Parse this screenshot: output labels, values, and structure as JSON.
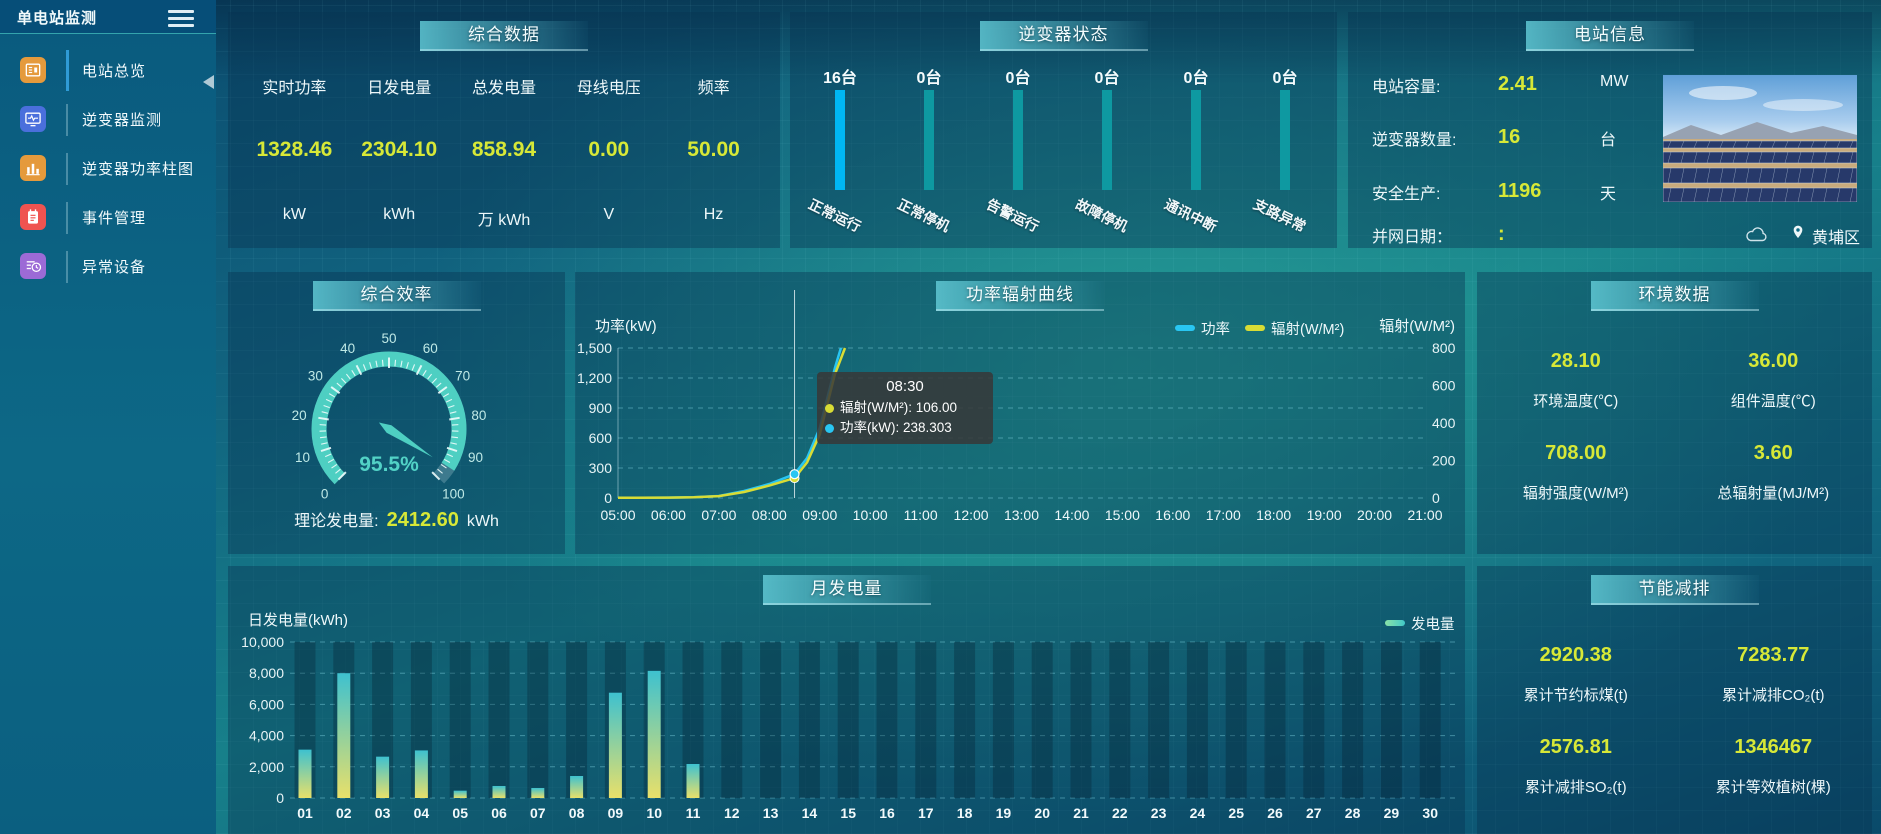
{
  "app_title": "单电站监测",
  "sidebar": {
    "title": "单电站监测",
    "items": [
      {
        "label": "电站总览",
        "icon": "overview-doc-icon",
        "icon_color": "#e59a3c",
        "active": true
      },
      {
        "label": "逆变器监测",
        "icon": "inverter-monitor-icon",
        "icon_color": "#4a6fdc",
        "active": false
      },
      {
        "label": "逆变器功率柱图",
        "icon": "power-barchart-icon",
        "icon_color": "#e59a3c",
        "active": false
      },
      {
        "label": "事件管理",
        "icon": "event-notebook-icon",
        "icon_color": "#ef5350",
        "active": false
      },
      {
        "label": "异常设备",
        "icon": "abnormal-device-icon",
        "icon_color": "#9c6ad6",
        "active": false
      }
    ]
  },
  "summary": {
    "title": "综合数据",
    "metrics": [
      {
        "label": "实时功率",
        "value": "1328.46",
        "unit": "kW"
      },
      {
        "label": "日发电量",
        "value": "2304.10",
        "unit": "kWh"
      },
      {
        "label": "总发电量",
        "value": "858.94",
        "unit": "万 kWh"
      },
      {
        "label": "母线电压",
        "value": "0.00",
        "unit": "V"
      },
      {
        "label": "频率",
        "value": "50.00",
        "unit": "Hz"
      }
    ]
  },
  "inverter_status": {
    "title": "逆变器状态",
    "unit_suffix": "台",
    "items": [
      {
        "label": "正常运行",
        "count": 16,
        "highlight": true
      },
      {
        "label": "正常停机",
        "count": 0,
        "highlight": false
      },
      {
        "label": "告警运行",
        "count": 0,
        "highlight": false
      },
      {
        "label": "故障停机",
        "count": 0,
        "highlight": false
      },
      {
        "label": "通讯中断",
        "count": 0,
        "highlight": false
      },
      {
        "label": "支路异常",
        "count": 0,
        "highlight": false
      }
    ],
    "colors": {
      "highlight": "#00b7f4",
      "normal": "#0e99a1"
    }
  },
  "station_info": {
    "title": "电站信息",
    "rows": [
      {
        "label": "电站容量:",
        "value": "2.41",
        "unit": "MW"
      },
      {
        "label": "逆变器数量:",
        "value": "16",
        "unit": "台"
      },
      {
        "label": "安全生产:",
        "value": "1196",
        "unit": "天"
      },
      {
        "label": "并网日期：",
        "value": ":",
        "unit": ""
      }
    ],
    "location": "黄埔区"
  },
  "efficiency": {
    "title": "综合效率",
    "gauge_display": "95.5%",
    "theory_label": "理论发电量:",
    "theory_value": "2412.60",
    "theory_unit": "kWh"
  },
  "power_radiation": {
    "title": "功率辐射曲线",
    "legend": [
      {
        "label": "功率",
        "color": "#29c6f2"
      },
      {
        "label": "辐射(W/M²)",
        "color": "#d8dc35"
      }
    ],
    "tooltip": {
      "time": "08:30",
      "rows": [
        {
          "color": "#d8dc35",
          "text": "辐射(W/M²): 106.00"
        },
        {
          "color": "#29c6f2",
          "text": "功率(kW): 238.303"
        }
      ]
    }
  },
  "environment": {
    "title": "环境数据",
    "items": [
      {
        "value": "28.10",
        "label": "环境温度(℃)"
      },
      {
        "value": "36.00",
        "label": "组件温度(℃)"
      },
      {
        "value": "708.00",
        "label": "辐射强度(W/M²)"
      },
      {
        "value": "3.60",
        "label": "总辐射量(MJ/M²)"
      }
    ]
  },
  "monthly": {
    "title": "月发电量",
    "ylabel": "日发电量(kWh)",
    "legend": "发电量"
  },
  "saving": {
    "title": "节能减排",
    "items": [
      {
        "value": "2920.38",
        "label": "累计节约标煤(t)"
      },
      {
        "value": "7283.77",
        "label": "累计减排CO₂(t)"
      },
      {
        "value": "2576.81",
        "label": "累计减排SO₂(t)"
      },
      {
        "value": "1346467",
        "label": "累计等效植树(棵)"
      }
    ]
  },
  "chart_data": [
    {
      "id": "inverter_status",
      "type": "bar",
      "title": "逆变器状态",
      "categories": [
        "正常运行",
        "正常停机",
        "告警运行",
        "故障停机",
        "通讯中断",
        "支路异常"
      ],
      "values": [
        16,
        0,
        0,
        0,
        0,
        0
      ],
      "unit": "台"
    },
    {
      "id": "power_radiation",
      "type": "line",
      "title": "功率辐射曲线",
      "x_ticks": [
        "05:00",
        "06:00",
        "07:00",
        "08:00",
        "09:00",
        "10:00",
        "11:00",
        "12:00",
        "13:00",
        "14:00",
        "15:00",
        "16:00",
        "17:00",
        "18:00",
        "19:00",
        "20:00",
        "21:00"
      ],
      "left_axis": {
        "name": "功率(kW)",
        "min": 0,
        "max": 1500,
        "ticks": [
          "1,500",
          "1,200",
          "900",
          "600",
          "300",
          "0"
        ]
      },
      "right_axis": {
        "name": "辐射(W/M²)",
        "min": 0,
        "max": 800,
        "ticks": [
          "800",
          "600",
          "400",
          "200",
          "0"
        ]
      },
      "pointer_hour": 8.5,
      "series": [
        {
          "name": "功率",
          "axis": "left",
          "color": "#29c6f2",
          "points": [
            [
              5,
              2
            ],
            [
              5.5,
              2
            ],
            [
              6,
              4
            ],
            [
              6.5,
              8
            ],
            [
              7,
              20
            ],
            [
              7.5,
              70
            ],
            [
              8,
              140
            ],
            [
              8.5,
              238.3
            ],
            [
              8.75,
              400
            ],
            [
              9,
              700
            ],
            [
              9.15,
              1000
            ],
            [
              9.3,
              1300
            ],
            [
              9.42,
              1500
            ]
          ]
        },
        {
          "name": "辐射(W/M²)",
          "axis": "right",
          "color": "#d8dc35",
          "points": [
            [
              5,
              1
            ],
            [
              6,
              2
            ],
            [
              6.5,
              4
            ],
            [
              7,
              10
            ],
            [
              7.5,
              32
            ],
            [
              8,
              66
            ],
            [
              8.5,
              106
            ],
            [
              8.75,
              190
            ],
            [
              9,
              340
            ],
            [
              9.15,
              500
            ],
            [
              9.3,
              660
            ],
            [
              9.5,
              800
            ]
          ]
        }
      ],
      "legend_position": "top-right-of-plot",
      "grid": true
    },
    {
      "id": "monthly_energy",
      "type": "bar",
      "title": "月发电量",
      "ylabel": "日发电量(kWh)",
      "legend": "发电量",
      "ymax": 10000,
      "yticks": [
        "10,000",
        "8,000",
        "6,000",
        "4,000",
        "2,000",
        "0"
      ],
      "categories": [
        "01",
        "02",
        "03",
        "04",
        "05",
        "06",
        "07",
        "08",
        "09",
        "10",
        "11",
        "12",
        "13",
        "14",
        "15",
        "16",
        "17",
        "18",
        "19",
        "20",
        "21",
        "22",
        "23",
        "24",
        "25",
        "26",
        "27",
        "28",
        "29",
        "30"
      ],
      "values": [
        3100,
        8000,
        2650,
        3050,
        470,
        770,
        640,
        1410,
        6750,
        8150,
        2180,
        0,
        0,
        0,
        0,
        0,
        0,
        0,
        0,
        0,
        0,
        0,
        0,
        0,
        0,
        0,
        0,
        0,
        0,
        0
      ]
    },
    {
      "id": "efficiency_gauge",
      "type": "gauge",
      "value": 95.5,
      "min": 0,
      "max": 100,
      "label": "95.5%",
      "tick_labels": [
        0,
        10,
        20,
        30,
        40,
        50,
        60,
        70,
        80,
        90,
        100
      ]
    }
  ]
}
